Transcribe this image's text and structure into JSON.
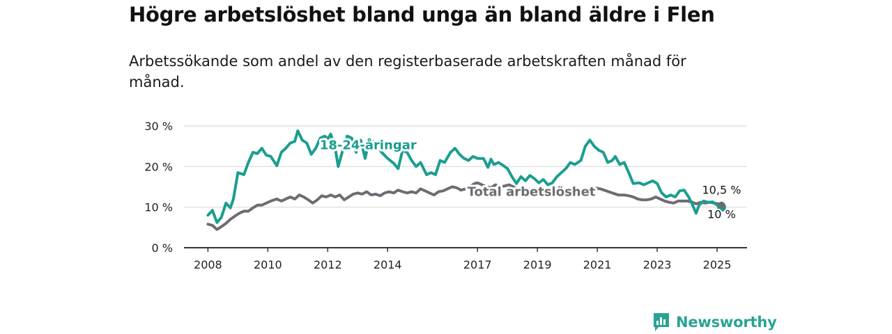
{
  "header": {
    "title": "Högre arbetslöshet bland unga än bland äldre i Flen",
    "subtitle": "Arbetssökande som andel av den registerbaserade arbetskraften månad för månad."
  },
  "brand": {
    "name": "Newsworthy",
    "icon": "bar-chart-speech-bubble-icon",
    "color": "#2aa394"
  },
  "colors": {
    "youth": "#1a9e8f",
    "total": "#6e6b72",
    "grid": "#d9d9d9",
    "axis": "#333333"
  },
  "chart_data": {
    "type": "line",
    "title": "Högre arbetslöshet bland unga än bland äldre i Flen",
    "subtitle": "Arbetssökande som andel av den registerbaserade arbetskraften månad för månad.",
    "xlabel": "",
    "ylabel": "",
    "xlim": [
      2007.2,
      2026.0
    ],
    "ylim": [
      0,
      30
    ],
    "x_ticks": [
      2008,
      2010,
      2012,
      2014,
      2017,
      2019,
      2021,
      2023,
      2025
    ],
    "x_tick_labels": [
      "2008",
      "2010",
      "2012",
      "2014",
      "2017",
      "2019",
      "2021",
      "2023",
      "2025"
    ],
    "y_ticks": [
      0,
      10,
      20,
      30
    ],
    "y_tick_labels": [
      "0 %",
      "10 %",
      "20 %",
      "30 %"
    ],
    "grid": true,
    "legend": "inline labels",
    "series": [
      {
        "name": "18-24-åringar",
        "color": "#1a9e8f",
        "end_label": "10 %",
        "points": [
          [
            2008.0,
            8.0
          ],
          [
            2008.15,
            9.2
          ],
          [
            2008.3,
            6.2
          ],
          [
            2008.45,
            7.5
          ],
          [
            2008.6,
            11.0
          ],
          [
            2008.75,
            9.8
          ],
          [
            2008.85,
            12.0
          ],
          [
            2009.0,
            18.5
          ],
          [
            2009.2,
            18.0
          ],
          [
            2009.35,
            21.0
          ],
          [
            2009.5,
            23.5
          ],
          [
            2009.65,
            23.2
          ],
          [
            2009.8,
            24.5
          ],
          [
            2009.95,
            22.8
          ],
          [
            2010.1,
            22.5
          ],
          [
            2010.3,
            20.2
          ],
          [
            2010.45,
            23.5
          ],
          [
            2010.6,
            24.5
          ],
          [
            2010.75,
            25.8
          ],
          [
            2010.9,
            26.2
          ],
          [
            2011.0,
            28.8
          ],
          [
            2011.15,
            26.5
          ],
          [
            2011.3,
            25.8
          ],
          [
            2011.45,
            23.0
          ],
          [
            2011.6,
            24.5
          ],
          [
            2011.75,
            27.0
          ],
          [
            2011.9,
            27.5
          ],
          [
            2012.0,
            26.8
          ],
          [
            2012.1,
            28.0
          ],
          [
            2012.25,
            24.5
          ],
          [
            2012.35,
            20.0
          ],
          [
            2012.5,
            24.0
          ],
          [
            2012.65,
            27.5
          ],
          [
            2012.8,
            27.0
          ],
          [
            2012.95,
            23.5
          ],
          [
            2013.1,
            26.5
          ],
          [
            2013.25,
            22.0
          ],
          [
            2013.4,
            27.2
          ],
          [
            2013.6,
            25.5
          ],
          [
            2013.8,
            23.5
          ],
          [
            2014.0,
            22.0
          ],
          [
            2014.2,
            20.8
          ],
          [
            2014.35,
            19.5
          ],
          [
            2014.5,
            24.0
          ],
          [
            2014.65,
            23.5
          ],
          [
            2014.8,
            21.5
          ],
          [
            2014.95,
            20.0
          ],
          [
            2015.1,
            21.0
          ],
          [
            2015.3,
            18.0
          ],
          [
            2015.45,
            18.5
          ],
          [
            2015.6,
            18.0
          ],
          [
            2015.75,
            21.5
          ],
          [
            2015.9,
            21.0
          ],
          [
            2016.1,
            23.5
          ],
          [
            2016.25,
            24.5
          ],
          [
            2016.4,
            23.0
          ],
          [
            2016.55,
            22.0
          ],
          [
            2016.7,
            21.5
          ],
          [
            2016.85,
            22.5
          ],
          [
            2017.0,
            22.0
          ],
          [
            2017.2,
            22.0
          ],
          [
            2017.35,
            19.8
          ],
          [
            2017.45,
            21.8
          ],
          [
            2017.55,
            20.5
          ],
          [
            2017.7,
            21.0
          ],
          [
            2017.85,
            20.3
          ],
          [
            2018.0,
            19.5
          ],
          [
            2018.15,
            17.5
          ],
          [
            2018.3,
            15.8
          ],
          [
            2018.45,
            17.5
          ],
          [
            2018.6,
            16.5
          ],
          [
            2018.75,
            17.8
          ],
          [
            2018.9,
            17.0
          ],
          [
            2019.05,
            16.0
          ],
          [
            2019.2,
            16.8
          ],
          [
            2019.35,
            15.5
          ],
          [
            2019.5,
            16.0
          ],
          [
            2019.65,
            17.5
          ],
          [
            2019.8,
            18.5
          ],
          [
            2019.95,
            19.5
          ],
          [
            2020.1,
            21.0
          ],
          [
            2020.25,
            20.5
          ],
          [
            2020.45,
            21.5
          ],
          [
            2020.6,
            25.0
          ],
          [
            2020.75,
            26.5
          ],
          [
            2020.9,
            25.0
          ],
          [
            2021.05,
            24.0
          ],
          [
            2021.2,
            23.5
          ],
          [
            2021.35,
            21.0
          ],
          [
            2021.5,
            21.5
          ],
          [
            2021.6,
            22.5
          ],
          [
            2021.75,
            20.5
          ],
          [
            2021.9,
            21.0
          ],
          [
            2022.05,
            18.5
          ],
          [
            2022.2,
            15.8
          ],
          [
            2022.4,
            16.0
          ],
          [
            2022.55,
            15.5
          ],
          [
            2022.7,
            16.0
          ],
          [
            2022.85,
            16.5
          ],
          [
            2023.0,
            15.8
          ],
          [
            2023.15,
            13.5
          ],
          [
            2023.3,
            12.5
          ],
          [
            2023.45,
            13.0
          ],
          [
            2023.6,
            12.5
          ],
          [
            2023.75,
            14.0
          ],
          [
            2023.9,
            14.2
          ],
          [
            2024.05,
            12.5
          ],
          [
            2024.15,
            11.0
          ],
          [
            2024.3,
            8.5
          ],
          [
            2024.4,
            10.5
          ],
          [
            2024.55,
            11.5
          ],
          [
            2024.7,
            11.2
          ],
          [
            2024.85,
            11.3
          ],
          [
            2025.0,
            10.5
          ],
          [
            2025.15,
            10.0
          ]
        ]
      },
      {
        "name": "Total arbetslöshet",
        "color": "#6e6b72",
        "end_label": "10,5 %",
        "points": [
          [
            2008.0,
            5.8
          ],
          [
            2008.15,
            5.5
          ],
          [
            2008.3,
            4.5
          ],
          [
            2008.45,
            5.2
          ],
          [
            2008.6,
            6.0
          ],
          [
            2008.75,
            7.0
          ],
          [
            2008.9,
            7.8
          ],
          [
            2009.05,
            8.5
          ],
          [
            2009.2,
            9.0
          ],
          [
            2009.35,
            9.0
          ],
          [
            2009.5,
            9.8
          ],
          [
            2009.65,
            10.5
          ],
          [
            2009.8,
            10.5
          ],
          [
            2009.95,
            11.0
          ],
          [
            2010.1,
            11.5
          ],
          [
            2010.3,
            12.0
          ],
          [
            2010.45,
            11.5
          ],
          [
            2010.6,
            12.0
          ],
          [
            2010.75,
            12.5
          ],
          [
            2010.9,
            12.0
          ],
          [
            2011.05,
            13.0
          ],
          [
            2011.2,
            12.5
          ],
          [
            2011.35,
            11.8
          ],
          [
            2011.5,
            11.0
          ],
          [
            2011.65,
            11.8
          ],
          [
            2011.8,
            12.8
          ],
          [
            2011.95,
            12.5
          ],
          [
            2012.1,
            13.0
          ],
          [
            2012.25,
            12.5
          ],
          [
            2012.4,
            13.0
          ],
          [
            2012.55,
            11.8
          ],
          [
            2012.7,
            12.5
          ],
          [
            2012.85,
            13.2
          ],
          [
            2013.0,
            13.5
          ],
          [
            2013.15,
            13.2
          ],
          [
            2013.3,
            13.8
          ],
          [
            2013.45,
            13.0
          ],
          [
            2013.6,
            13.2
          ],
          [
            2013.75,
            12.8
          ],
          [
            2013.9,
            13.5
          ],
          [
            2014.05,
            13.8
          ],
          [
            2014.2,
            13.5
          ],
          [
            2014.35,
            14.2
          ],
          [
            2014.5,
            13.8
          ],
          [
            2014.65,
            13.5
          ],
          [
            2014.8,
            13.8
          ],
          [
            2014.95,
            13.5
          ],
          [
            2015.1,
            14.5
          ],
          [
            2015.25,
            14.0
          ],
          [
            2015.4,
            13.5
          ],
          [
            2015.55,
            13.0
          ],
          [
            2015.7,
            13.8
          ],
          [
            2015.85,
            14.0
          ],
          [
            2016.0,
            14.5
          ],
          [
            2016.15,
            15.0
          ],
          [
            2016.3,
            14.8
          ],
          [
            2016.45,
            14.2
          ],
          [
            2016.6,
            14.5
          ],
          [
            2016.75,
            15.0
          ],
          [
            2016.9,
            15.8
          ],
          [
            2017.0,
            16.0
          ],
          [
            2017.15,
            15.5
          ],
          [
            2017.3,
            15.0
          ],
          [
            2017.45,
            14.8
          ],
          [
            2017.6,
            15.5
          ],
          [
            2017.75,
            15.0
          ],
          [
            2017.9,
            15.2
          ],
          [
            2018.05,
            15.5
          ],
          [
            2018.2,
            15.0
          ],
          [
            2018.35,
            14.5
          ],
          [
            2018.5,
            14.8
          ],
          [
            2018.65,
            14.5
          ],
          [
            2018.8,
            14.2
          ],
          [
            2018.95,
            14.0
          ],
          [
            2019.1,
            14.0
          ],
          [
            2019.3,
            13.5
          ],
          [
            2019.5,
            13.5
          ],
          [
            2019.7,
            13.0
          ],
          [
            2019.9,
            13.2
          ],
          [
            2020.1,
            13.5
          ],
          [
            2020.3,
            14.0
          ],
          [
            2020.5,
            14.2
          ],
          [
            2020.7,
            14.5
          ],
          [
            2020.9,
            14.8
          ],
          [
            2021.1,
            14.5
          ],
          [
            2021.3,
            14.0
          ],
          [
            2021.5,
            13.5
          ],
          [
            2021.7,
            13.0
          ],
          [
            2021.9,
            13.0
          ],
          [
            2022.05,
            12.8
          ],
          [
            2022.2,
            12.5
          ],
          [
            2022.35,
            12.0
          ],
          [
            2022.5,
            11.8
          ],
          [
            2022.65,
            11.8
          ],
          [
            2022.8,
            12.0
          ],
          [
            2022.95,
            12.5
          ],
          [
            2023.1,
            12.0
          ],
          [
            2023.25,
            11.5
          ],
          [
            2023.4,
            11.2
          ],
          [
            2023.55,
            11.0
          ],
          [
            2023.7,
            11.5
          ],
          [
            2023.85,
            11.5
          ],
          [
            2024.0,
            11.5
          ],
          [
            2024.15,
            11.3
          ],
          [
            2024.3,
            10.8
          ],
          [
            2024.45,
            11.2
          ],
          [
            2024.6,
            11.0
          ],
          [
            2024.75,
            11.2
          ],
          [
            2024.9,
            11.0
          ],
          [
            2025.05,
            10.8
          ],
          [
            2025.15,
            10.5
          ]
        ]
      }
    ],
    "annotations": [
      {
        "text": "18-24-åringar",
        "series": "18-24-åringar",
        "at": [
          2013.35,
          24.3
        ]
      },
      {
        "text": "Total arbetslöshet",
        "series": "Total arbetslöshet",
        "at": [
          2018.8,
          12.8
        ]
      },
      {
        "text": "10,5 %",
        "series": "Total arbetslöshet",
        "at": [
          2025.15,
          13.3
        ]
      },
      {
        "text": "10 %",
        "series": "18-24-åringar",
        "at": [
          2025.15,
          7.3
        ]
      }
    ]
  }
}
